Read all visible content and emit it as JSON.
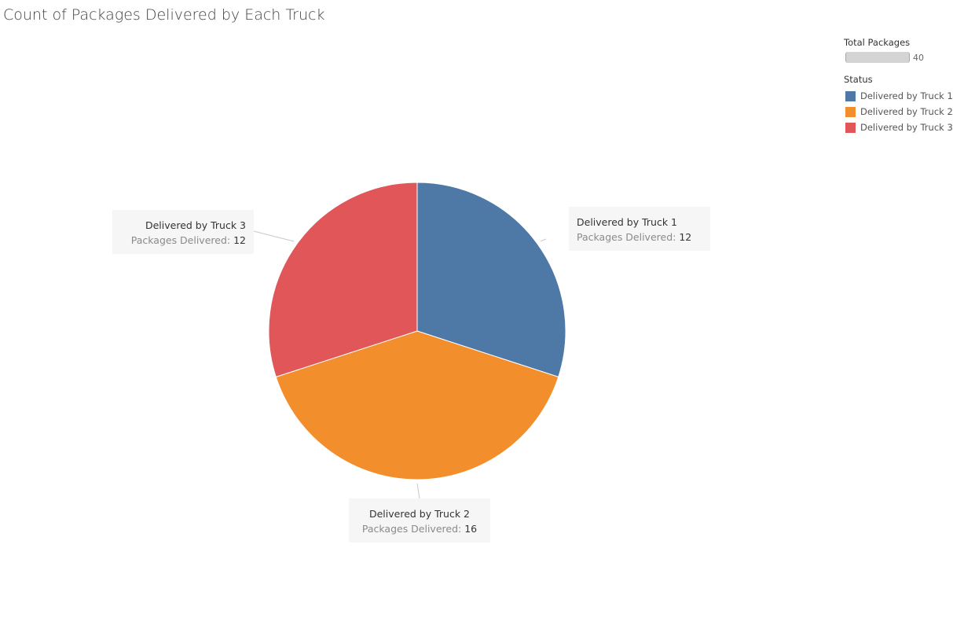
{
  "title": "Count of Packages Delivered by Each Truck",
  "size_legend": {
    "heading": "Total Packages",
    "value": "40"
  },
  "color_legend": {
    "heading": "Status",
    "items": [
      {
        "label": "Delivered by Truck 1",
        "color": "#4e79a7"
      },
      {
        "label": "Delivered by Truck 2",
        "color": "#f28e2b"
      },
      {
        "label": "Delivered by Truck 3",
        "color": "#e15759"
      }
    ]
  },
  "metric_label": "Packages Delivered:",
  "chart_data": {
    "type": "pie",
    "title": "Count of Packages Delivered by Each Truck",
    "legend_placement": "top-right",
    "slices": [
      {
        "label": "Delivered by Truck 1",
        "value": 12,
        "color": "#4e79a7"
      },
      {
        "label": "Delivered by Truck 2",
        "value": 16,
        "color": "#f28e2b"
      },
      {
        "label": "Delivered by Truck 3",
        "value": 12,
        "color": "#e15759"
      }
    ],
    "total": 40
  }
}
